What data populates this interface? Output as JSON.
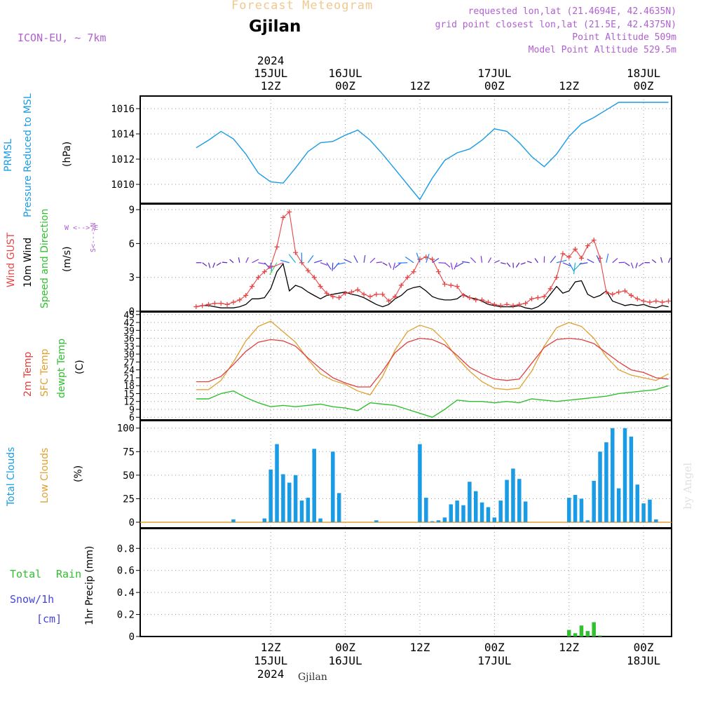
{
  "header": {
    "title": "Forecast Meteogram",
    "location": "Gjilan",
    "model": "ICON-EU, ~ 7km",
    "requested": "requested lon,lat (21.4694E, 42.4635N)",
    "grid_point": "grid point closest lon,lat (21.5E, 42.4375N)",
    "point_altitude": "Point Altitude 509m",
    "model_altitude": "Model Point Altitude 529.5m",
    "footer_location": "Gjilan",
    "watermark": "by Angel"
  },
  "time_axis": {
    "top_year": "2024",
    "labels": [
      {
        "hour": 12,
        "l1": "15JUL",
        "l2": "12Z"
      },
      {
        "hour": 24,
        "l1": "16JUL",
        "l2": "00Z"
      },
      {
        "hour": 36,
        "l1": "",
        "l2": "12Z"
      },
      {
        "hour": 48,
        "l1": "17JUL",
        "l2": "00Z"
      },
      {
        "hour": 60,
        "l1": "",
        "l2": "12Z"
      },
      {
        "hour": 72,
        "l1": "18JUL",
        "l2": "00Z"
      }
    ],
    "bottom_labels": [
      {
        "hour": 12,
        "l1": "12Z",
        "l2": "15JUL",
        "l3": "2024"
      },
      {
        "hour": 24,
        "l1": "00Z",
        "l2": "16JUL",
        "l3": ""
      },
      {
        "hour": 36,
        "l1": "12Z",
        "l2": "",
        "l3": ""
      },
      {
        "hour": 48,
        "l1": "00Z",
        "l2": "17JUL",
        "l3": ""
      },
      {
        "hour": 60,
        "l1": "12Z",
        "l2": "",
        "l3": ""
      },
      {
        "hour": 72,
        "l1": "00Z",
        "l2": "18JUL",
        "l3": ""
      }
    ]
  },
  "panel_labels": {
    "pressure": {
      "l1": "PRMSL",
      "l2": "Pressure Reduced to MSL",
      "unit": "(hPa)"
    },
    "wind": {
      "gust": "Wind GUST",
      "wind": "10m Wind",
      "dir": "Speed and Direction",
      "unit": "(m/s)",
      "compass_ns": "S<--->N",
      "compass_we": "W <--> E"
    },
    "temp": {
      "t2m": "2m Temp",
      "sfc": "SFC Temp",
      "dewpt": "dewpt Temp",
      "unit": "(C)"
    },
    "clouds": {
      "total": "Total Clouds",
      "low": "Low Clouds",
      "unit": "(%)"
    },
    "precip": {
      "total": "Total",
      "rain": "Rain",
      "snow": "Snow/1h",
      "snow_unit": "[cm]",
      "ylabel": "1hr Precip (mm)"
    }
  },
  "colors": {
    "pressure": "#1a9be6",
    "gust": "#e84646",
    "wind": "#000000",
    "t2m": "#e04040",
    "sfc": "#e0a030",
    "dewpt": "#30c030",
    "clouds": "#1a9be6",
    "low_clouds": "#e0a030",
    "rain": "#30c030",
    "snow": "#4444dd",
    "purple": "#b060d0"
  },
  "chart_data": [
    {
      "type": "line",
      "name_key": "pressure",
      "ylim": [
        1008.5,
        1017
      ],
      "yticks": [
        1010,
        1012,
        1014,
        1016
      ],
      "x": [
        0,
        2,
        4,
        6,
        8,
        10,
        12,
        14,
        16,
        18,
        20,
        22,
        24,
        26,
        28,
        30,
        32,
        34,
        36,
        38,
        40,
        42,
        44,
        46,
        48,
        50,
        52,
        54,
        56,
        58,
        60,
        62,
        64,
        66,
        68,
        70,
        72,
        74,
        76
      ],
      "values": [
        1012.9,
        1013.5,
        1014.2,
        1013.6,
        1012.4,
        1010.9,
        1010.2,
        1010.1,
        1011.3,
        1012.6,
        1013.3,
        1013.4,
        1013.9,
        1014.3,
        1013.5,
        1012.4,
        1011.2,
        1010.0,
        1008.8,
        1010.5,
        1011.9,
        1012.5,
        1012.8,
        1013.5,
        1014.4,
        1014.2,
        1013.3,
        1012.2,
        1011.4,
        1012.4,
        1013.8,
        1014.8,
        1015.3,
        1015.9,
        1016.5,
        1016.5,
        1016.5,
        1016.5,
        1016.5
      ]
    },
    {
      "type": "line",
      "name_key": "wind",
      "ylim": [
        0,
        9.5
      ],
      "yticks": [
        0,
        3,
        6,
        9
      ],
      "x": [
        0,
        1,
        2,
        3,
        4,
        5,
        6,
        7,
        8,
        9,
        10,
        11,
        12,
        13,
        14,
        15,
        16,
        17,
        18,
        19,
        20,
        21,
        22,
        23,
        24,
        25,
        26,
        27,
        28,
        29,
        30,
        31,
        32,
        33,
        34,
        35,
        36,
        37,
        38,
        39,
        40,
        41,
        42,
        43,
        44,
        45,
        46,
        47,
        48,
        49,
        50,
        51,
        52,
        53,
        54,
        55,
        56,
        57,
        58,
        59,
        60,
        61,
        62,
        63,
        64,
        65,
        66,
        67,
        68,
        69,
        70,
        71,
        72,
        73,
        74,
        75,
        76
      ],
      "gust": [
        0.4,
        0.5,
        0.6,
        0.7,
        0.7,
        0.6,
        0.8,
        1.0,
        1.4,
        2.2,
        3.0,
        3.5,
        4.0,
        5.7,
        8.3,
        8.8,
        5.2,
        4.3,
        3.6,
        3.0,
        2.2,
        1.6,
        1.3,
        1.2,
        1.6,
        1.7,
        1.9,
        1.5,
        1.3,
        1.5,
        1.5,
        0.9,
        1.3,
        2.3,
        3.0,
        3.5,
        4.6,
        4.8,
        4.6,
        3.5,
        2.4,
        2.3,
        2.2,
        1.4,
        1.2,
        1.0,
        1.0,
        0.8,
        0.6,
        0.5,
        0.6,
        0.5,
        0.6,
        0.7,
        1.1,
        1.2,
        1.3,
        2.0,
        3.0,
        5.1,
        4.8,
        5.5,
        4.7,
        5.8,
        6.3,
        4.7,
        1.7,
        1.5,
        1.7,
        1.8,
        1.4,
        1.1,
        0.9,
        0.8,
        0.9,
        0.8,
        0.9
      ],
      "values": [
        0.4,
        0.5,
        0.5,
        0.4,
        0.3,
        0.3,
        0.3,
        0.4,
        0.6,
        1.1,
        1.1,
        1.2,
        2.0,
        3.5,
        4.2,
        1.8,
        2.3,
        2.1,
        1.7,
        1.4,
        1.1,
        1.4,
        1.5,
        1.6,
        1.7,
        1.5,
        1.4,
        1.2,
        0.9,
        0.6,
        0.4,
        0.6,
        1.1,
        1.4,
        1.9,
        2.1,
        2.2,
        1.8,
        1.3,
        1.1,
        1.0,
        1.0,
        1.1,
        1.5,
        1.2,
        1.1,
        0.9,
        0.6,
        0.5,
        0.4,
        0.4,
        0.4,
        0.5,
        0.3,
        0.2,
        0.4,
        0.8,
        1.5,
        2.2,
        1.6,
        1.8,
        2.6,
        2.7,
        1.5,
        1.2,
        1.4,
        1.8,
        0.9,
        0.7,
        0.5,
        0.6,
        0.5,
        0.6,
        0.4,
        0.3,
        0.5,
        0.4
      ]
    },
    {
      "type": "line",
      "name_key": "temp",
      "ylim": [
        5,
        46
      ],
      "yticks": [
        6,
        9,
        12,
        15,
        18,
        21,
        24,
        27,
        30,
        33,
        36,
        39,
        42,
        45
      ],
      "x": [
        0,
        2,
        4,
        6,
        8,
        10,
        12,
        14,
        16,
        18,
        20,
        22,
        24,
        26,
        28,
        30,
        32,
        34,
        36,
        38,
        40,
        42,
        44,
        46,
        48,
        50,
        52,
        54,
        56,
        58,
        60,
        62,
        64,
        66,
        68,
        70,
        72,
        74,
        76
      ],
      "t2m": [
        19.5,
        19.5,
        21.5,
        26.0,
        31.0,
        34.5,
        35.5,
        35.0,
        33.0,
        28.5,
        24.5,
        21.0,
        19.0,
        17.5,
        17.5,
        23.5,
        30.5,
        34.5,
        36.0,
        35.5,
        33.5,
        29.5,
        25.0,
        22.5,
        20.5,
        20.0,
        20.5,
        26.5,
        32.5,
        35.5,
        36.0,
        35.5,
        34.0,
        30.5,
        27.0,
        24.0,
        23.0,
        21.0,
        20.5
      ],
      "sfc": [
        16.5,
        16.5,
        20.0,
        27.0,
        35.0,
        40.5,
        42.5,
        38.5,
        34.5,
        28.0,
        22.5,
        20.0,
        18.5,
        16.0,
        14.5,
        21.5,
        31.5,
        38.5,
        41.0,
        39.5,
        35.0,
        28.5,
        23.5,
        19.5,
        17.0,
        16.5,
        17.0,
        23.5,
        33.0,
        40.0,
        42.0,
        40.5,
        36.0,
        29.0,
        24.0,
        22.0,
        21.0,
        20.0,
        22.5
      ],
      "dewpt": [
        13.0,
        13.0,
        15.0,
        16.0,
        13.5,
        11.5,
        10.0,
        10.5,
        10.0,
        10.5,
        11.0,
        10.0,
        9.5,
        8.5,
        11.5,
        11.0,
        10.5,
        9.0,
        7.5,
        6.0,
        9.0,
        12.5,
        12.0,
        12.0,
        11.5,
        12.0,
        11.5,
        13.0,
        12.5,
        12.0,
        12.5,
        13.0,
        13.5,
        14.0,
        15.0,
        15.5,
        16.0,
        16.5,
        18.0
      ]
    },
    {
      "type": "bar",
      "name_key": "clouds",
      "ylim": [
        -6,
        108
      ],
      "yticks": [
        0,
        25,
        50,
        75,
        100
      ],
      "x": [
        0,
        1,
        2,
        3,
        4,
        5,
        6,
        7,
        8,
        9,
        10,
        11,
        12,
        13,
        14,
        15,
        16,
        17,
        18,
        19,
        20,
        21,
        22,
        23,
        24,
        25,
        26,
        27,
        28,
        29,
        30,
        31,
        32,
        33,
        34,
        35,
        36,
        37,
        38,
        39,
        40,
        41,
        42,
        43,
        44,
        45,
        46,
        47,
        48,
        49,
        50,
        51,
        52,
        53,
        54,
        55,
        56,
        57,
        58,
        59,
        60,
        61,
        62,
        63,
        64,
        65,
        66,
        67,
        68,
        69,
        70,
        71,
        72,
        73,
        74,
        75,
        76
      ],
      "values": [
        0,
        0,
        0,
        0,
        0,
        0,
        3,
        0,
        0,
        0,
        0,
        4,
        56,
        83,
        51,
        42,
        50,
        23,
        26,
        78,
        4,
        0,
        75,
        31,
        0,
        0,
        0,
        0,
        0,
        2,
        0,
        0,
        0,
        0,
        0,
        0,
        83,
        26,
        1,
        2,
        5,
        19,
        23,
        18,
        43,
        33,
        21,
        16,
        5,
        23,
        45,
        57,
        46,
        22,
        0,
        0,
        0,
        0,
        0,
        0,
        26,
        29,
        25,
        2,
        44,
        75,
        85,
        100,
        36,
        100,
        91,
        40,
        20,
        24,
        3,
        0,
        0
      ]
    },
    {
      "type": "bar",
      "name_key": "precip",
      "ylim": [
        0,
        0.98
      ],
      "yticks": [
        0,
        0.2,
        0.4,
        0.6,
        0.8
      ],
      "x": [
        60,
        61,
        62,
        63,
        64,
        65
      ],
      "values": [
        0.06,
        0.03,
        0.1,
        0.05,
        0.13,
        0.01
      ]
    }
  ]
}
